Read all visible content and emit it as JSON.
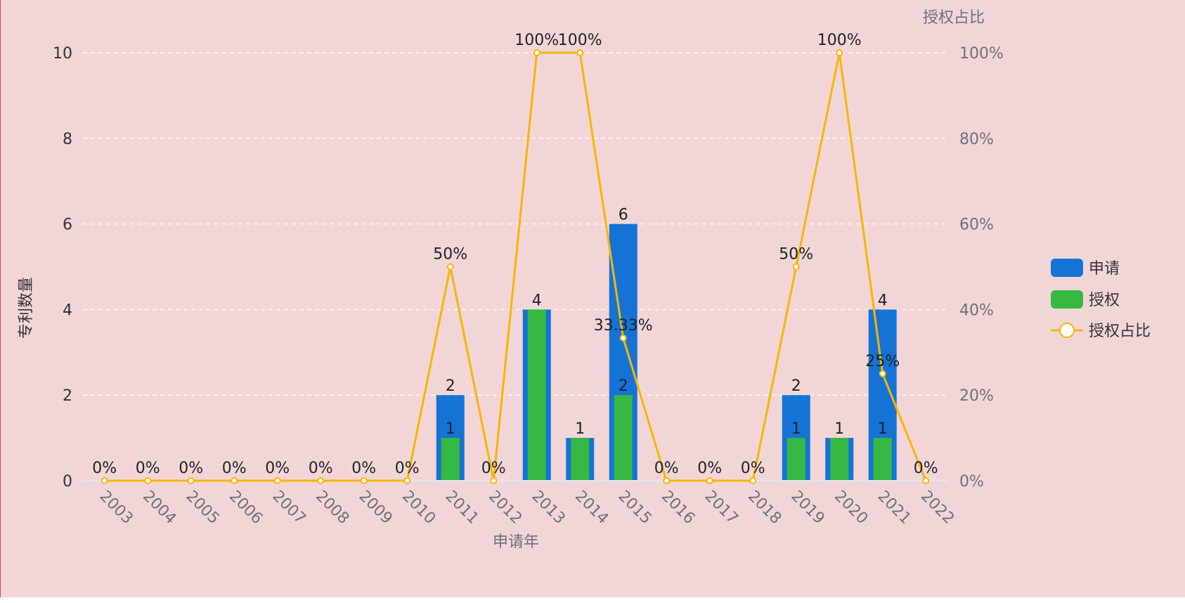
{
  "chart_data": {
    "type": "bar",
    "categories": [
      "2003",
      "2004",
      "2005",
      "2006",
      "2007",
      "2008",
      "2009",
      "2010",
      "2011",
      "2012",
      "2013",
      "2014",
      "2015",
      "2016",
      "2017",
      "2018",
      "2019",
      "2020",
      "2021",
      "2022"
    ],
    "series": [
      {
        "name": "申请",
        "type": "bar",
        "color": "#1573d6",
        "values": [
          0,
          0,
          0,
          0,
          0,
          0,
          0,
          0,
          2,
          0,
          4,
          1,
          6,
          0,
          0,
          0,
          2,
          1,
          4,
          0
        ],
        "labels": [
          "",
          "",
          "",
          "",
          "",
          "",
          "",
          "",
          "2",
          "",
          "4",
          "1",
          "6",
          "",
          "",
          "",
          "2",
          "1",
          "4",
          ""
        ]
      },
      {
        "name": "授权",
        "type": "bar",
        "color": "#37b843",
        "values": [
          0,
          0,
          0,
          0,
          0,
          0,
          0,
          0,
          1,
          0,
          4,
          1,
          2,
          0,
          0,
          0,
          1,
          1,
          1,
          0
        ],
        "labels": [
          "",
          "",
          "",
          "",
          "",
          "",
          "",
          "",
          "1",
          "",
          "",
          "",
          "2",
          "",
          "",
          "",
          "1",
          "",
          "1",
          ""
        ]
      },
      {
        "name": "授权占比",
        "type": "line",
        "axis": "right",
        "color": "#f7b500",
        "values": [
          0,
          0,
          0,
          0,
          0,
          0,
          0,
          0,
          50,
          0,
          100,
          100,
          33.33,
          0,
          0,
          0,
          50,
          100,
          25,
          0
        ],
        "labels": [
          "0%",
          "0%",
          "0%",
          "0%",
          "0%",
          "0%",
          "0%",
          "0%",
          "50%",
          "0%",
          "100%",
          "100%",
          "33.33%",
          "0%",
          "0%",
          "0%",
          "50%",
          "100%",
          "25%",
          "0%"
        ]
      }
    ],
    "xlabel": "申请年",
    "ylabel": "专利数量",
    "y2label": "授权占比",
    "ylim": [
      0,
      10
    ],
    "y2lim": [
      0,
      100
    ],
    "yticks": [
      "0",
      "2",
      "4",
      "6",
      "8",
      "10"
    ],
    "y2ticks": [
      "0%",
      "20%",
      "40%",
      "60%",
      "80%",
      "100%"
    ],
    "grid": true,
    "legend_position": "right"
  }
}
